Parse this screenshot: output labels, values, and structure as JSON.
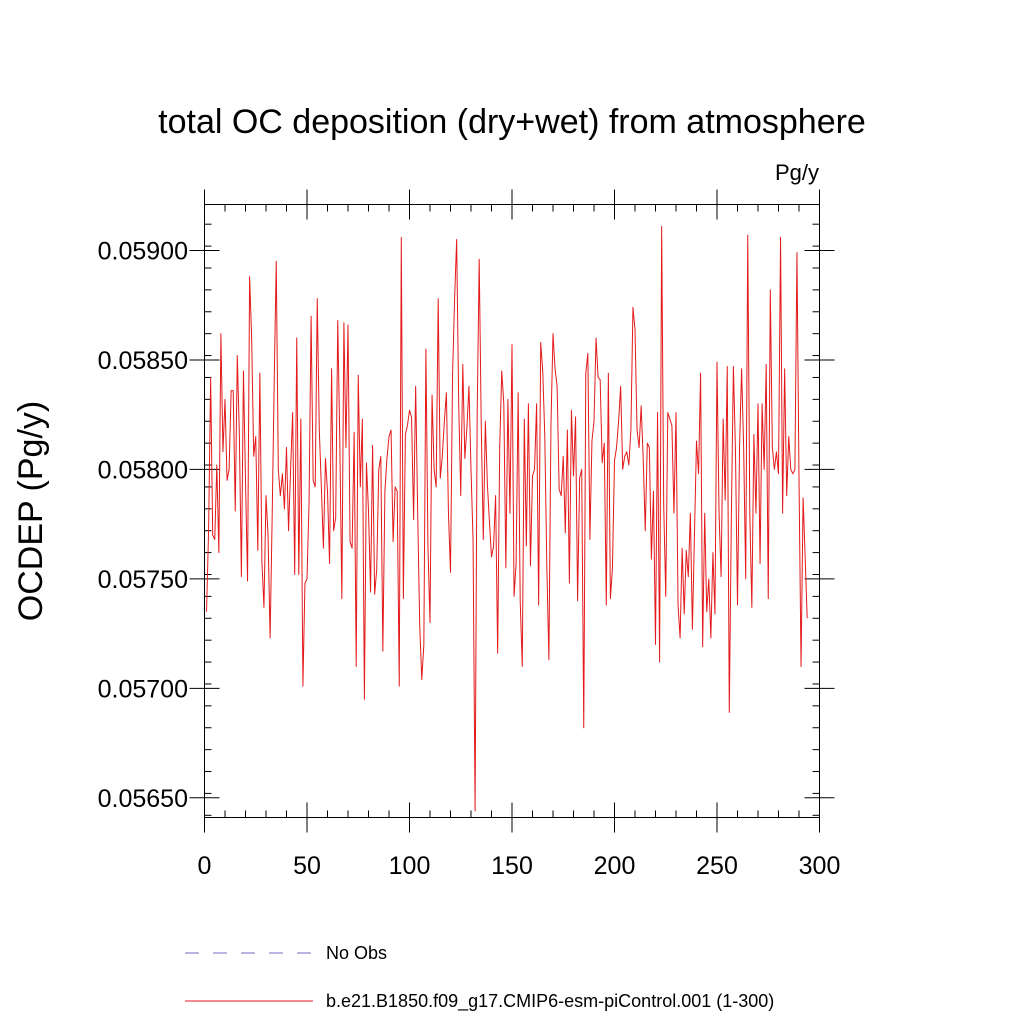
{
  "chart_data": {
    "type": "line",
    "title": "total OC deposition (dry+wet) from atmosphere",
    "units": "Pg/y",
    "ylabel": "OCDEP  (Pg/y)",
    "xlabel": "",
    "xlim": [
      0,
      300
    ],
    "ylim": [
      0.05641,
      0.05921
    ],
    "xticks": [
      0,
      50,
      100,
      150,
      200,
      250,
      300
    ],
    "xtick_labels": [
      "0",
      "50",
      "100",
      "150",
      "200",
      "250",
      "300"
    ],
    "yticks": [
      0.0565,
      0.057,
      0.0575,
      0.058,
      0.0585,
      0.059
    ],
    "ytick_labels": [
      "0.05650",
      "0.05700",
      "0.05750",
      "0.05800",
      "0.05850",
      "0.05900"
    ],
    "grid": false,
    "legend_position": "bottom",
    "series": [
      {
        "name": "No Obs",
        "color": "#7b68c8",
        "style": "dashed",
        "values": []
      },
      {
        "name": "b.e21.B1850.f09_g17.CMIP6-esm-piControl.001 (1-300)",
        "color": "#e41a1c",
        "style": "solid",
        "x_start": 1,
        "values": [
          0.05735,
          0.05772,
          0.05842,
          0.0577,
          0.05768,
          0.05802,
          0.05762,
          0.05862,
          0.05808,
          0.05832,
          0.05795,
          0.058,
          0.05836,
          0.05836,
          0.05781,
          0.05852,
          0.05816,
          0.05751,
          0.05845,
          0.05795,
          0.05749,
          0.05888,
          0.0586,
          0.05806,
          0.05815,
          0.05763,
          0.05844,
          0.05758,
          0.05737,
          0.05788,
          0.0577,
          0.05723,
          0.05778,
          0.0584,
          0.05895,
          0.058,
          0.05788,
          0.05798,
          0.05782,
          0.0581,
          0.05772,
          0.058,
          0.05826,
          0.05752,
          0.0586,
          0.05752,
          0.05823,
          0.05701,
          0.05748,
          0.0575,
          0.05785,
          0.0587,
          0.05795,
          0.05792,
          0.05878,
          0.05818,
          0.05792,
          0.05764,
          0.05805,
          0.0579,
          0.05757,
          0.05846,
          0.05772,
          0.05778,
          0.05868,
          0.05813,
          0.05741,
          0.05867,
          0.0581,
          0.05866,
          0.05767,
          0.05764,
          0.05817,
          0.0571,
          0.05843,
          0.05792,
          0.05823,
          0.05695,
          0.05803,
          0.05781,
          0.05744,
          0.05811,
          0.05743,
          0.05754,
          0.058,
          0.05806,
          0.05717,
          0.0579,
          0.05805,
          0.05815,
          0.05818,
          0.05767,
          0.05792,
          0.0579,
          0.05701,
          0.05906,
          0.05741,
          0.05816,
          0.0582,
          0.05827,
          0.05824,
          0.05777,
          0.05838,
          0.0578,
          0.05728,
          0.05704,
          0.0572,
          0.05855,
          0.05765,
          0.0573,
          0.05834,
          0.058,
          0.05792,
          0.05878,
          0.05796,
          0.05806,
          0.05822,
          0.05835,
          0.0578,
          0.05753,
          0.05843,
          0.05878,
          0.05905,
          0.0583,
          0.05788,
          0.05848,
          0.05805,
          0.05819,
          0.05838,
          0.058,
          0.05768,
          0.05644,
          0.05824,
          0.05896,
          0.0582,
          0.05768,
          0.05822,
          0.05793,
          0.05776,
          0.0576,
          0.05765,
          0.05788,
          0.05716,
          0.0581,
          0.05845,
          0.0583,
          0.05755,
          0.05832,
          0.0578,
          0.05857,
          0.05742,
          0.05757,
          0.05835,
          0.0574,
          0.0571,
          0.05823,
          0.05765,
          0.0583,
          0.05756,
          0.05797,
          0.058,
          0.0583,
          0.05738,
          0.05858,
          0.05845,
          0.05815,
          0.05755,
          0.05713,
          0.0582,
          0.05862,
          0.05846,
          0.05838,
          0.05791,
          0.05788,
          0.05806,
          0.05771,
          0.05818,
          0.05748,
          0.05827,
          0.05797,
          0.05824,
          0.0574,
          0.05796,
          0.058,
          0.05682,
          0.05844,
          0.05853,
          0.05768,
          0.05813,
          0.05822,
          0.0586,
          0.05842,
          0.05841,
          0.05803,
          0.05812,
          0.05738,
          0.05844,
          0.05741,
          0.05755,
          0.05804,
          0.0581,
          0.05822,
          0.05838,
          0.058,
          0.05806,
          0.05808,
          0.05802,
          0.05818,
          0.05874,
          0.05864,
          0.05818,
          0.0581,
          0.05829,
          0.05805,
          0.05772,
          0.05812,
          0.0581,
          0.05759,
          0.0579,
          0.0572,
          0.05826,
          0.05712,
          0.05911,
          0.05784,
          0.05742,
          0.05826,
          0.05823,
          0.0582,
          0.0578,
          0.05826,
          0.05738,
          0.05723,
          0.05764,
          0.05734,
          0.05763,
          0.05751,
          0.0578,
          0.05727,
          0.0577,
          0.05813,
          0.05798,
          0.05844,
          0.05719,
          0.0578,
          0.05735,
          0.0575,
          0.05723,
          0.05762,
          0.05734,
          0.05849,
          0.0578,
          0.05751,
          0.05823,
          0.05786,
          0.05847,
          0.05689,
          0.05778,
          0.05847,
          0.05809,
          0.05738,
          0.0581,
          0.05846,
          0.0581,
          0.0575,
          0.05907,
          0.0578,
          0.05737,
          0.05816,
          0.0578,
          0.0583,
          0.05757,
          0.0583,
          0.058,
          0.05848,
          0.05741,
          0.05882,
          0.0581,
          0.058,
          0.05808,
          0.05798,
          0.05906,
          0.0578,
          0.05846,
          0.05788,
          0.05815,
          0.058,
          0.05798,
          0.058,
          0.05899,
          0.05796,
          0.0571,
          0.05787,
          0.0576,
          0.05732
        ]
      }
    ]
  }
}
